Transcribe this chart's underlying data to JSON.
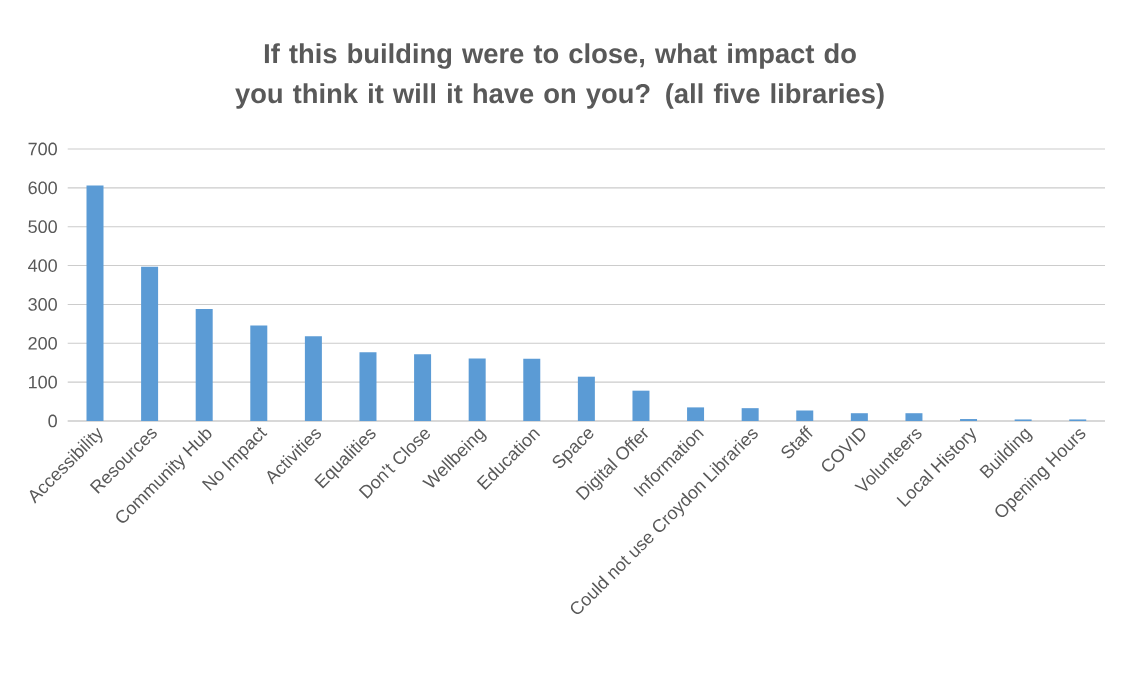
{
  "chart_data": {
    "type": "bar",
    "title": "If this building were to close, what impact do you think it will it have on you? (all five libraries)",
    "categories": [
      "Accessibility",
      "Resources",
      "Community Hub",
      "No Impact",
      "Activities",
      "Equalities",
      "Don't Close",
      "Wellbeing",
      "Education",
      "Space",
      "Digital Offer",
      "Information",
      "Could not use Croydon Libraries",
      "Staff",
      "COVID",
      "Volunteers",
      "Local History",
      "Building",
      "Opening Hours"
    ],
    "values": [
      606,
      397,
      288,
      246,
      218,
      177,
      172,
      161,
      160,
      114,
      78,
      35,
      33,
      27,
      20,
      20,
      5,
      4,
      4
    ],
    "color": "#5b9bd5",
    "ylim": [
      0,
      700
    ],
    "yticks": [
      0,
      100,
      200,
      300,
      400,
      500,
      600,
      700
    ],
    "grid": "y"
  }
}
